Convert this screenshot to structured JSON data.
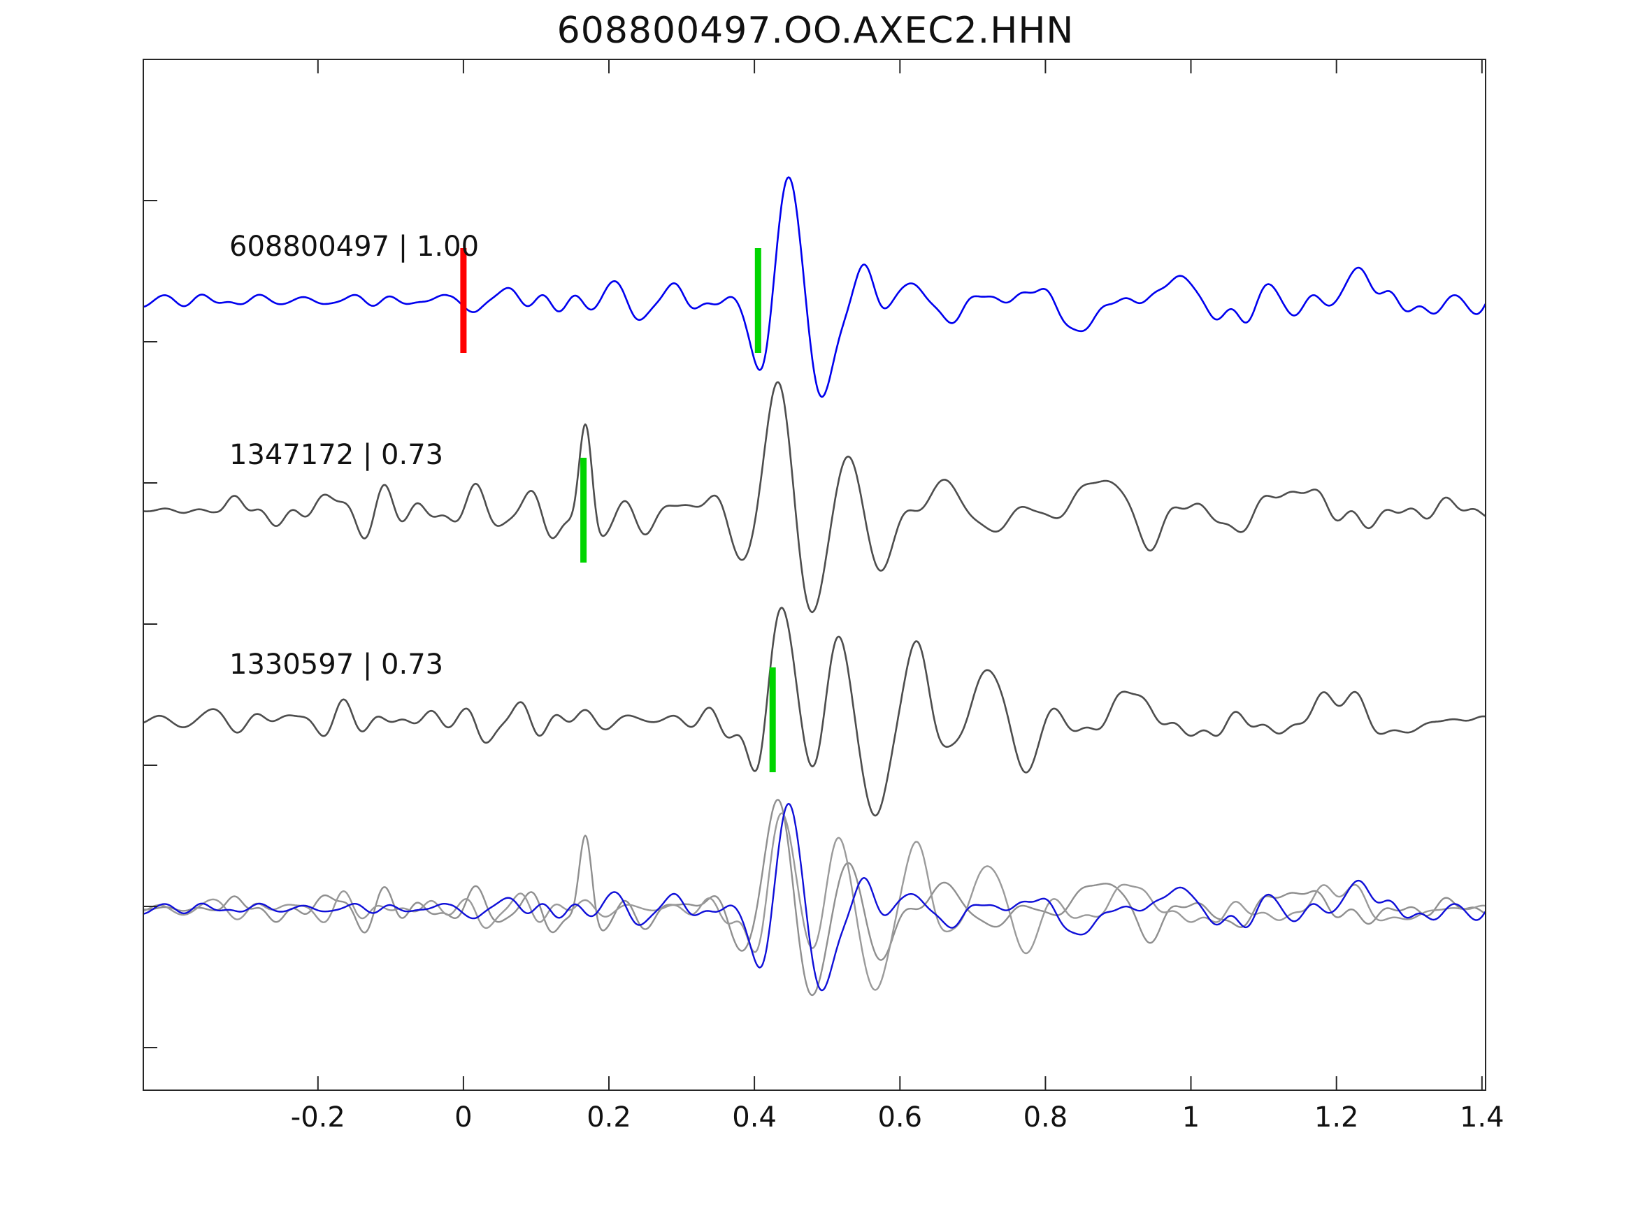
{
  "title": "608800497.OO.AXEC2.HHN",
  "colors": {
    "background": "#ffffff",
    "frame": "#262626",
    "template_blue": "#0000ee",
    "candidate_gray": "#4d4d4d",
    "overlay_gray": "#8f8f8f",
    "origin_red": "#ff0000",
    "pick_green": "#00d500"
  },
  "chart_data": {
    "type": "line",
    "title": "608800497.OO.AXEC2.HHN",
    "xlabel": "",
    "ylabel": "",
    "grid": false,
    "legend": "none",
    "xlim": [
      -0.44,
      1.405
    ],
    "x_ticks": {
      "values": [
        -0.2,
        0,
        0.2,
        0.4,
        0.6,
        0.8,
        1.0,
        1.2,
        1.4
      ],
      "labels": [
        "-0.2",
        "0",
        "0.2",
        "0.4",
        "0.6",
        "0.8",
        "1",
        "1.2",
        "1.4"
      ]
    },
    "traces": [
      {
        "id": "608800497",
        "similarity": "1.00",
        "label": "608800497 | 1.00",
        "color": "#0000ee",
        "baseline": 430,
        "seed": 11,
        "noise_freq": [
          7,
          28
        ],
        "noise_env": [
          [
            -0.44,
            5
          ],
          [
            -0.02,
            5
          ],
          [
            0.02,
            11
          ],
          [
            0.34,
            10
          ],
          [
            0.4,
            5
          ],
          [
            0.5,
            8
          ],
          [
            0.6,
            13
          ],
          [
            0.9,
            12
          ],
          [
            1.405,
            10
          ]
        ],
        "wavelets": [
          [
            0.06,
            30,
            0.04,
            16,
            0
          ],
          [
            0.22,
            18,
            0.09,
            12,
            1
          ],
          [
            0.412,
            -45,
            0.02,
            5,
            0
          ],
          [
            0.447,
            175,
            0.045,
            9.5,
            0
          ],
          [
            0.495,
            -80,
            0.035,
            7,
            0
          ],
          [
            0.555,
            45,
            0.035,
            11,
            0
          ],
          [
            0.65,
            38,
            0.07,
            9,
            2
          ],
          [
            0.85,
            -45,
            0.05,
            7,
            0
          ],
          [
            1.0,
            30,
            0.1,
            6,
            1
          ],
          [
            1.25,
            32,
            0.09,
            5,
            0.5
          ]
        ],
        "markers": [
          {
            "x": 0.0,
            "color": "#ff0000",
            "name": "template-origin-marker"
          },
          {
            "x": 0.405,
            "color": "#00d500",
            "name": "pick-marker"
          }
        ]
      },
      {
        "id": "1347172",
        "similarity": "0.73",
        "label": "1347172 | 0.73",
        "color": "#4d4d4d",
        "baseline": 730,
        "seed": 23,
        "noise_freq": [
          6,
          25
        ],
        "noise_env": [
          [
            -0.44,
            2
          ],
          [
            -0.34,
            3
          ],
          [
            -0.3,
            14
          ],
          [
            0.0,
            16
          ],
          [
            0.1,
            14
          ],
          [
            0.3,
            13
          ],
          [
            0.4,
            8
          ],
          [
            0.55,
            10
          ],
          [
            0.8,
            12
          ],
          [
            1.405,
            10
          ]
        ],
        "wavelets": [
          [
            0.145,
            -30,
            0.02,
            8,
            0
          ],
          [
            0.168,
            140,
            0.016,
            13,
            0
          ],
          [
            0.195,
            -45,
            0.025,
            8,
            0
          ],
          [
            0.432,
            180,
            0.045,
            9,
            0
          ],
          [
            0.48,
            -85,
            0.03,
            7,
            0
          ],
          [
            0.53,
            60,
            0.04,
            10,
            0
          ],
          [
            0.575,
            -60,
            0.04,
            8,
            0
          ],
          [
            0.68,
            45,
            0.08,
            8,
            1
          ],
          [
            0.88,
            50,
            0.06,
            6,
            0
          ],
          [
            0.95,
            -40,
            0.05,
            7,
            0
          ],
          [
            1.15,
            30,
            0.12,
            5,
            0
          ]
        ],
        "markers": [
          {
            "x": 0.165,
            "color": "#00d500",
            "name": "pick-marker"
          }
        ]
      },
      {
        "id": "1330597",
        "similarity": "0.73",
        "label": "1330597 | 0.73",
        "color": "#4d4d4d",
        "baseline": 1030,
        "seed": 37,
        "noise_freq": [
          6,
          26
        ],
        "noise_env": [
          [
            -0.44,
            8
          ],
          [
            0.0,
            9
          ],
          [
            0.03,
            16
          ],
          [
            0.35,
            14
          ],
          [
            0.41,
            8
          ],
          [
            0.5,
            9
          ],
          [
            0.8,
            12
          ],
          [
            1.405,
            11
          ]
        ],
        "wavelets": [
          [
            0.035,
            -40,
            0.03,
            14,
            0
          ],
          [
            0.405,
            -50,
            0.02,
            6,
            0
          ],
          [
            0.437,
            170,
            0.04,
            9,
            0
          ],
          [
            0.52,
            95,
            0.035,
            9,
            0
          ],
          [
            0.565,
            -120,
            0.04,
            8,
            0
          ],
          [
            0.625,
            90,
            0.04,
            9,
            0
          ],
          [
            0.72,
            65,
            0.05,
            9,
            0
          ],
          [
            0.78,
            -45,
            0.05,
            8,
            0
          ],
          [
            0.95,
            40,
            0.1,
            6,
            1
          ],
          [
            1.2,
            35,
            0.12,
            5,
            0
          ]
        ],
        "markers": [
          {
            "x": 0.425,
            "color": "#00d500",
            "name": "pick-marker"
          }
        ]
      }
    ],
    "overlay": {
      "baseline": 1300,
      "scale": 0.85,
      "members": [
        {
          "trace": 1,
          "color": "#8f8f8f"
        },
        {
          "trace": 2,
          "color": "#9a9a9a"
        },
        {
          "trace": 0,
          "color": "#0f0fd8"
        }
      ]
    }
  }
}
